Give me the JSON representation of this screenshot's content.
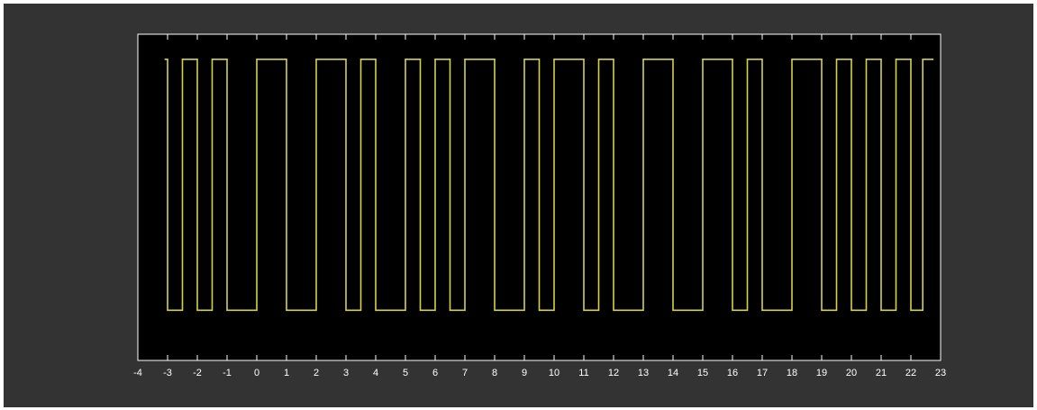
{
  "colors": {
    "figure_background": "#333333",
    "plot_background": "#000000",
    "axes": "#ffffff",
    "grid": "#ffffff",
    "signal": "#d4d24a"
  },
  "chart_data": {
    "type": "line",
    "title": "",
    "xlabel": "",
    "ylabel": "",
    "xlim": [
      -4,
      23
    ],
    "ylim": [
      -0.2,
      1.1
    ],
    "grid": "vertical dashed at each integer",
    "x_tick_labels": [
      "-4",
      "-3",
      "-2",
      "-1",
      "0",
      "1",
      "2",
      "3",
      "4",
      "5",
      "6",
      "7",
      "8",
      "9",
      "10",
      "11",
      "12",
      "13",
      "14",
      "15",
      "16",
      "17",
      "18",
      "19",
      "20",
      "21",
      "22",
      "23"
    ],
    "y_tick_labels": [],
    "series": [
      {
        "step": "post",
        "x": [
          -3.1,
          -3.0,
          -2.5,
          -2.0,
          -1.5,
          -1.0,
          0.0,
          1.0,
          2.0,
          3.0,
          3.5,
          4.0,
          5.0,
          5.5,
          6.0,
          6.5,
          7.0,
          8.0,
          9.0,
          9.5,
          10.0,
          11.0,
          11.5,
          12.0,
          13.0,
          14.0,
          15.0,
          16.0,
          16.5,
          17.0,
          18.0,
          19.0,
          19.5,
          20.0,
          20.5,
          21.0,
          21.5,
          22.0,
          22.4
        ],
        "y": [
          1,
          0,
          1,
          0,
          1,
          0,
          1,
          0,
          1,
          0,
          1,
          0,
          1,
          0,
          1,
          0,
          1,
          0,
          1,
          0,
          1,
          0,
          1,
          0,
          1,
          0,
          1,
          0,
          1,
          0,
          1,
          0,
          1,
          0,
          1,
          0,
          1,
          0,
          1
        ]
      }
    ]
  }
}
